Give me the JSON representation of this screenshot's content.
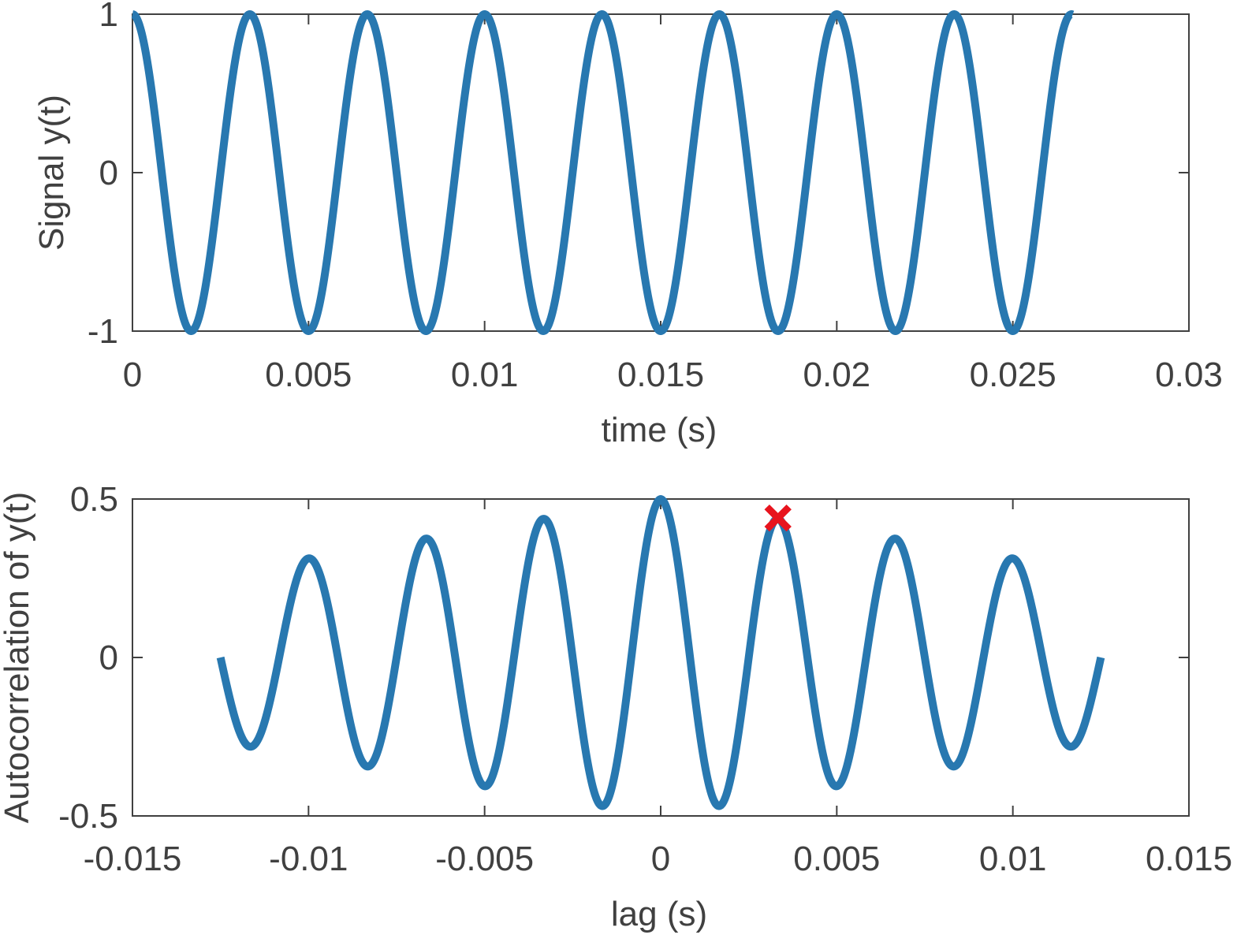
{
  "colors": {
    "series": "#2878b0",
    "marker": "#e8141e",
    "axes": "#404040",
    "background": "#ffffff"
  },
  "chart_data": [
    {
      "type": "line",
      "xlabel": "time (s)",
      "ylabel": "Signal y(t)",
      "xlim": [
        0,
        0.03
      ],
      "ylim": [
        -1,
        1
      ],
      "xticks": [
        0,
        0.005,
        0.01,
        0.015,
        0.02,
        0.025,
        0.03
      ],
      "xtick_labels": [
        "0",
        "0.005",
        "0.01",
        "0.015",
        "0.02",
        "0.025",
        "0.03"
      ],
      "yticks": [
        -1,
        0,
        1
      ],
      "ytick_labels": [
        "-1",
        "0",
        "1"
      ],
      "grid": false,
      "series": [
        {
          "function": "cos(2*pi*300*t)",
          "frequency_hz": 300,
          "amplitude": 1,
          "x_range": [
            0,
            0.0267
          ]
        }
      ]
    },
    {
      "type": "line",
      "xlabel": "lag (s)",
      "ylabel": "Autocorrelation of y(t)",
      "xlim": [
        -0.015,
        0.015
      ],
      "ylim": [
        -0.5,
        0.5
      ],
      "xticks": [
        -0.015,
        -0.01,
        -0.005,
        0,
        0.005,
        0.01,
        0.015
      ],
      "xtick_labels": [
        "-0.015",
        "-0.01",
        "-0.005",
        "0",
        "0.005",
        "0.01",
        "0.015"
      ],
      "yticks": [
        -0.5,
        0,
        0.5
      ],
      "ytick_labels": [
        "-0.5",
        "0",
        "0.5"
      ],
      "grid": false,
      "series": [
        {
          "function": "0.5*(1-|lag|/0.0267)*cos(2*pi*300*lag)",
          "frequency_hz": 300,
          "peak": 0.5,
          "x_range": [
            -0.0125,
            0.0125
          ]
        }
      ],
      "marker": {
        "x": 0.00333,
        "y": 0.44,
        "symbol": "x"
      }
    }
  ]
}
